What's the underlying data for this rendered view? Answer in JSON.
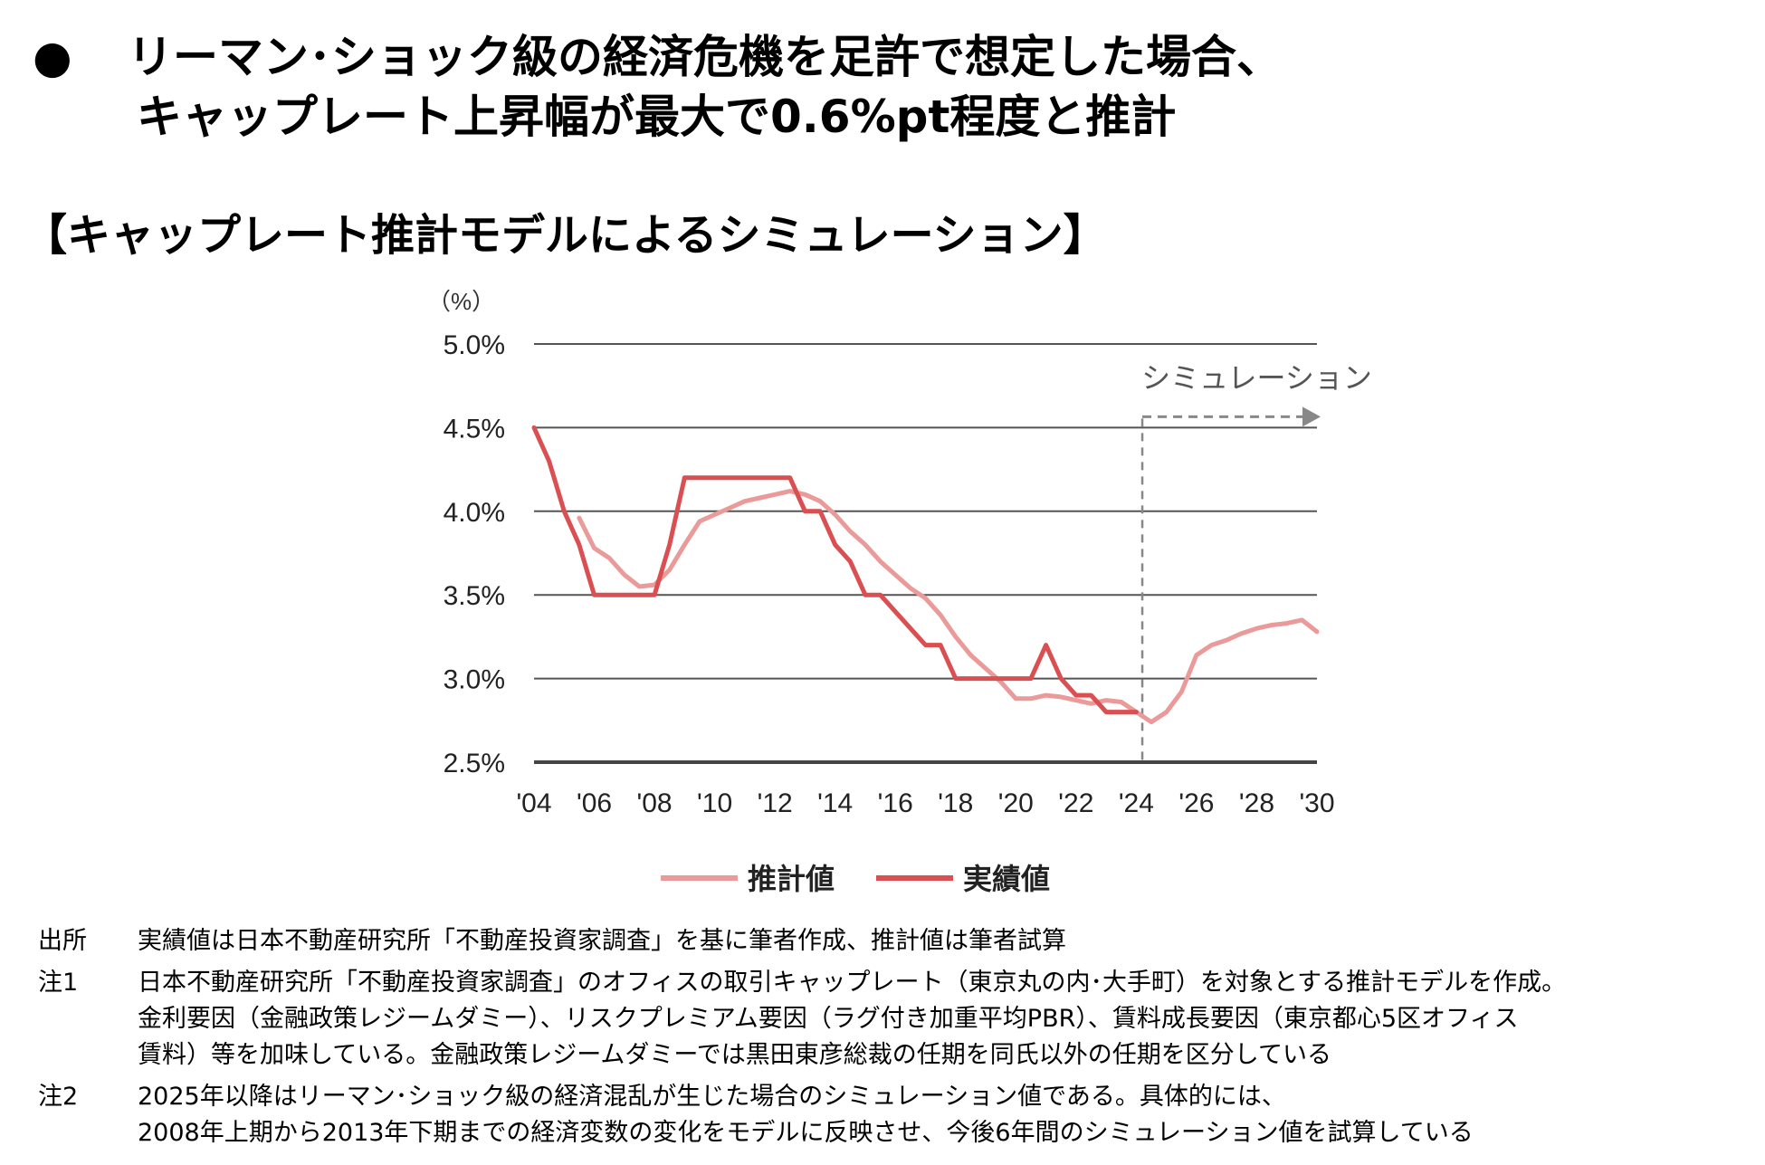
{
  "headline": {
    "bullet": "●",
    "line1": "リーマン･ショック級の経済危機を足許で想定した場合、",
    "line2": "キャップレート上昇幅が最大で0.6%pt程度と推計"
  },
  "subtitle": "【キャップレート推計モデルによるシミュレーション】",
  "chart_data": {
    "type": "line",
    "unit_label": "（%）",
    "x_tick_labels": [
      "'04",
      "'06",
      "'08",
      "'10",
      "'12",
      "'14",
      "'16",
      "'18",
      "'20",
      "'22",
      "'24",
      "'26",
      "'28",
      "'30"
    ],
    "x_ticks": [
      2004,
      2006,
      2008,
      2010,
      2012,
      2014,
      2016,
      2018,
      2020,
      2022,
      2024,
      2026,
      2028,
      2030
    ],
    "xlim": [
      2004,
      2030
    ],
    "y_ticks": [
      2.5,
      3.0,
      3.5,
      4.0,
      4.5,
      5.0
    ],
    "y_tick_labels": [
      "2.5%",
      "3.0%",
      "3.5%",
      "4.0%",
      "4.5%",
      "5.0%"
    ],
    "ylim": [
      2.5,
      5.0
    ],
    "grid": true,
    "legend_position": "bottom",
    "simulation": {
      "label": "シミュレーション",
      "start_x": 2024.2
    },
    "series": [
      {
        "name": "推計値",
        "color": "#eb9a9a",
        "points": [
          [
            2005.5,
            3.96
          ],
          [
            2006,
            3.78
          ],
          [
            2006.5,
            3.72
          ],
          [
            2007,
            3.62
          ],
          [
            2007.5,
            3.55
          ],
          [
            2008,
            3.56
          ],
          [
            2008.5,
            3.65
          ],
          [
            2009,
            3.8
          ],
          [
            2009.5,
            3.94
          ],
          [
            2010,
            3.98
          ],
          [
            2010.5,
            4.02
          ],
          [
            2011,
            4.06
          ],
          [
            2011.5,
            4.08
          ],
          [
            2012,
            4.1
          ],
          [
            2012.5,
            4.12
          ],
          [
            2013,
            4.1
          ],
          [
            2013.5,
            4.06
          ],
          [
            2014,
            3.98
          ],
          [
            2014.5,
            3.88
          ],
          [
            2015,
            3.8
          ],
          [
            2015.5,
            3.7
          ],
          [
            2016,
            3.62
          ],
          [
            2016.5,
            3.54
          ],
          [
            2017,
            3.48
          ],
          [
            2017.5,
            3.38
          ],
          [
            2018,
            3.25
          ],
          [
            2018.5,
            3.14
          ],
          [
            2019,
            3.06
          ],
          [
            2019.5,
            2.98
          ],
          [
            2020,
            2.88
          ],
          [
            2020.5,
            2.88
          ],
          [
            2021,
            2.9
          ],
          [
            2021.5,
            2.89
          ],
          [
            2022,
            2.87
          ],
          [
            2022.5,
            2.85
          ],
          [
            2023,
            2.87
          ],
          [
            2023.5,
            2.86
          ],
          [
            2024,
            2.8
          ],
          [
            2024.5,
            2.74
          ],
          [
            2025,
            2.8
          ],
          [
            2025.5,
            2.92
          ],
          [
            2026,
            3.14
          ],
          [
            2026.5,
            3.2
          ],
          [
            2027,
            3.23
          ],
          [
            2027.5,
            3.27
          ],
          [
            2028,
            3.3
          ],
          [
            2028.5,
            3.32
          ],
          [
            2029,
            3.33
          ],
          [
            2029.5,
            3.35
          ],
          [
            2030,
            3.28
          ]
        ]
      },
      {
        "name": "実績値",
        "color": "#d94f52",
        "points": [
          [
            2004,
            4.5
          ],
          [
            2004.5,
            4.3
          ],
          [
            2005,
            4.0
          ],
          [
            2005.5,
            3.8
          ],
          [
            2006,
            3.5
          ],
          [
            2006.5,
            3.5
          ],
          [
            2007,
            3.5
          ],
          [
            2007.5,
            3.5
          ],
          [
            2008,
            3.5
          ],
          [
            2008.5,
            3.8
          ],
          [
            2009,
            4.2
          ],
          [
            2009.5,
            4.2
          ],
          [
            2010,
            4.2
          ],
          [
            2010.5,
            4.2
          ],
          [
            2011,
            4.2
          ],
          [
            2011.5,
            4.2
          ],
          [
            2012,
            4.2
          ],
          [
            2012.5,
            4.2
          ],
          [
            2013,
            4.0
          ],
          [
            2013.5,
            4.0
          ],
          [
            2014,
            3.8
          ],
          [
            2014.5,
            3.7
          ],
          [
            2015,
            3.5
          ],
          [
            2015.5,
            3.5
          ],
          [
            2016,
            3.4
          ],
          [
            2016.5,
            3.3
          ],
          [
            2017,
            3.2
          ],
          [
            2017.5,
            3.2
          ],
          [
            2018,
            3.0
          ],
          [
            2018.5,
            3.0
          ],
          [
            2019,
            3.0
          ],
          [
            2019.5,
            3.0
          ],
          [
            2020,
            3.0
          ],
          [
            2020.5,
            3.0
          ],
          [
            2021,
            3.2
          ],
          [
            2021.5,
            3.0
          ],
          [
            2022,
            2.9
          ],
          [
            2022.5,
            2.9
          ],
          [
            2023,
            2.8
          ],
          [
            2023.5,
            2.8
          ],
          [
            2024,
            2.8
          ]
        ]
      }
    ]
  },
  "notes": [
    {
      "label": "出所",
      "lines": [
        "実績値は日本不動産研究所「不動産投資家調査」を基に筆者作成、推計値は筆者試算"
      ]
    },
    {
      "label": "注1",
      "lines": [
        "日本不動産研究所「不動産投資家調査」のオフィスの取引キャップレート（東京丸の内･大手町）を対象とする推計モデルを作成。",
        "金利要因（金融政策レジームダミー）、リスクプレミアム要因（ラグ付き加重平均PBR）、賃料成長要因（東京都心5区オフィス",
        "賃料）等を加味している。金融政策レジームダミーでは黒田東彦総裁の任期を同氏以外の任期を区分している"
      ]
    },
    {
      "label": "注2",
      "lines": [
        "2025年以降はリーマン･ショック級の経済混乱が生じた場合のシミュレーション値である。具体的には、",
        "2008年上期から2013年下期までの経済変数の変化をモデルに反映させ、今後6年間のシミュレーション値を試算している"
      ]
    }
  ]
}
